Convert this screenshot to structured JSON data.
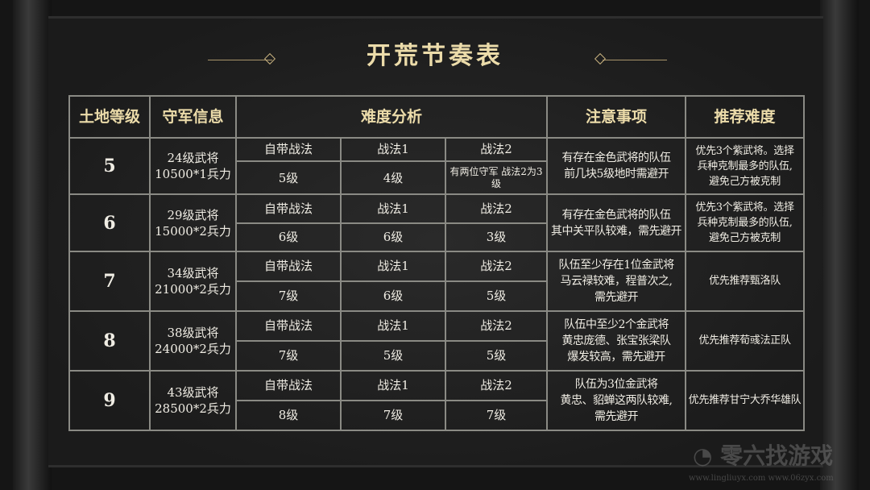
{
  "title": "开荒节奏表",
  "headers": [
    "土地等级",
    "守军信息",
    "难度分析",
    "注意事项",
    "推荐难度"
  ],
  "rows": [
    {
      "level": "5",
      "garrison": [
        "24级武将",
        "10500*1兵力"
      ],
      "skills_labels": [
        "自带战法",
        "战法1",
        "战法2"
      ],
      "skills_values": [
        "5级",
        "4级",
        "有两位守军 战法2为3级"
      ],
      "notes": [
        "有存在金色武将的队伍",
        "前几块5级地时需避开"
      ],
      "recommend": [
        "优先3个紫武将。选择",
        "兵种克制最多的队伍,",
        "避免己方被克制"
      ]
    },
    {
      "level": "6",
      "garrison": [
        "29级武将",
        "15000*2兵力"
      ],
      "skills_labels": [
        "自带战法",
        "战法1",
        "战法2"
      ],
      "skills_values": [
        "6级",
        "6级",
        "3级"
      ],
      "notes": [
        "有存在金色武将的队伍",
        "其中关平队较难，需先避开"
      ],
      "recommend": [
        "优先3个紫武将。选择",
        "兵种克制最多的队伍,",
        "避免己方被克制"
      ]
    },
    {
      "level": "7",
      "garrison": [
        "34级武将",
        "21000*2兵力"
      ],
      "skills_labels": [
        "自带战法",
        "战法1",
        "战法2"
      ],
      "skills_values": [
        "7级",
        "6级",
        "5级"
      ],
      "notes": [
        "队伍至少存在1位金武将",
        "马云禄较难，程普次之,",
        "需先避开"
      ],
      "recommend": [
        "优先推荐甄洛队"
      ]
    },
    {
      "level": "8",
      "garrison": [
        "38级武将",
        "24000*2兵力"
      ],
      "skills_labels": [
        "自带战法",
        "战法1",
        "战法2"
      ],
      "skills_values": [
        "7级",
        "5级",
        "5级"
      ],
      "notes": [
        "队伍中至少2个金武将",
        "黄忠庞德、张宝张梁队",
        "爆发较高，需先避开"
      ],
      "recommend": [
        "优先推荐荀彧法正队"
      ]
    },
    {
      "level": "9",
      "garrison": [
        "43级武将",
        "28500*2兵力"
      ],
      "skills_labels": [
        "自带战法",
        "战法1",
        "战法2"
      ],
      "skills_values": [
        "8级",
        "7级",
        "7级"
      ],
      "notes": [
        "队伍为3位金武将",
        "黄忠、貂蝉这两队较难,",
        "需先避开"
      ],
      "recommend": [
        "优先推荐甘宁大乔华雄队"
      ]
    }
  ],
  "watermark": {
    "text": "零六找游戏",
    "urls": "www.lingliuyx.com   www.06zyx.com"
  },
  "colors": {
    "gold": "#ecdcaa",
    "background": "#1b1b1b",
    "border": "#8a8a84"
  }
}
